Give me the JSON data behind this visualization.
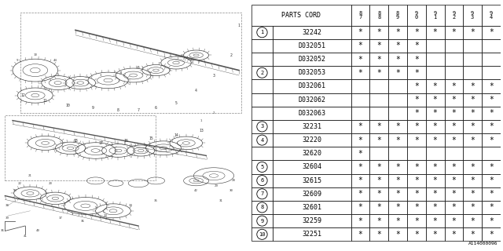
{
  "bg_color": "#ffffff",
  "line_color": "#000000",
  "text_color": "#000000",
  "font_size": 6.5,
  "header_row": [
    "PARTS CORD",
    "8\n7",
    "8\n8",
    "8\n9",
    "9\n0",
    "9\n1",
    "9\n2",
    "9\n3",
    "9\n4"
  ],
  "rows": [
    {
      "num": "1",
      "code": "32242",
      "stars": [
        1,
        1,
        1,
        1,
        1,
        1,
        1,
        1
      ]
    },
    {
      "num": "",
      "code": "D032051",
      "stars": [
        1,
        1,
        1,
        1,
        0,
        0,
        0,
        0
      ]
    },
    {
      "num": "",
      "code": "D032052",
      "stars": [
        1,
        1,
        1,
        1,
        0,
        0,
        0,
        0
      ]
    },
    {
      "num": "2",
      "code": "D032053",
      "stars": [
        1,
        1,
        1,
        1,
        0,
        0,
        0,
        0
      ]
    },
    {
      "num": "",
      "code": "D032061",
      "stars": [
        0,
        0,
        0,
        1,
        1,
        1,
        1,
        1
      ]
    },
    {
      "num": "",
      "code": "D032062",
      "stars": [
        0,
        0,
        0,
        1,
        1,
        1,
        1,
        1
      ]
    },
    {
      "num": "",
      "code": "D032063",
      "stars": [
        0,
        0,
        0,
        1,
        1,
        1,
        1,
        1
      ]
    },
    {
      "num": "3",
      "code": "32231",
      "stars": [
        1,
        1,
        1,
        1,
        1,
        1,
        1,
        1
      ]
    },
    {
      "num": "4",
      "code": "32220",
      "stars": [
        1,
        1,
        1,
        1,
        1,
        1,
        1,
        1
      ]
    },
    {
      "num": "",
      "code": "32620",
      "stars": [
        1,
        0,
        0,
        0,
        0,
        0,
        0,
        0
      ]
    },
    {
      "num": "5",
      "code": "32604",
      "stars": [
        1,
        1,
        1,
        1,
        1,
        1,
        1,
        1
      ]
    },
    {
      "num": "6",
      "code": "32615",
      "stars": [
        1,
        1,
        1,
        1,
        1,
        1,
        1,
        1
      ]
    },
    {
      "num": "7",
      "code": "32609",
      "stars": [
        1,
        1,
        1,
        1,
        1,
        1,
        1,
        1
      ]
    },
    {
      "num": "8",
      "code": "32601",
      "stars": [
        1,
        1,
        1,
        1,
        1,
        1,
        1,
        1
      ]
    },
    {
      "num": "9",
      "code": "32259",
      "stars": [
        1,
        1,
        1,
        1,
        1,
        1,
        1,
        1
      ]
    },
    {
      "num": "10",
      "code": "32251",
      "stars": [
        1,
        1,
        1,
        1,
        1,
        1,
        1,
        1
      ]
    }
  ],
  "footer": "A114000096",
  "diagram_split": 0.5
}
